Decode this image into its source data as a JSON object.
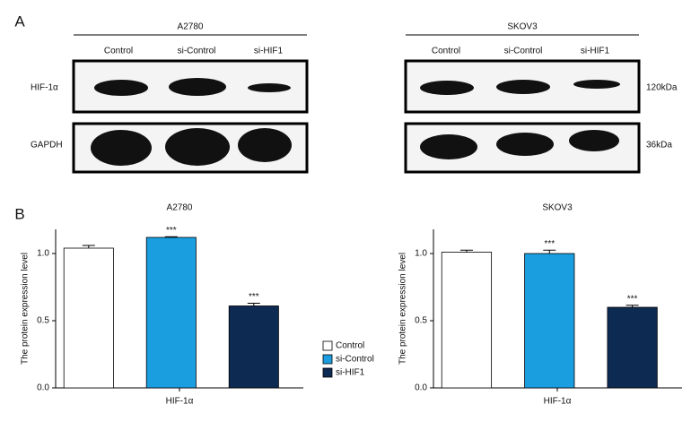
{
  "panel_a": {
    "label": "A",
    "blots": [
      {
        "cell_line": "A2780",
        "lanes": [
          "Control",
          "si-Control",
          "si-HIF1"
        ],
        "rows": [
          "HIF-1α",
          "GAPDH"
        ]
      },
      {
        "cell_line": "SKOV3",
        "lanes": [
          "Control",
          "si-Control",
          "si-HIF1"
        ],
        "sizes": [
          "120kDa",
          "36kDa"
        ]
      }
    ]
  },
  "panel_b": {
    "label": "B"
  },
  "chart_data": [
    {
      "type": "bar",
      "title": "A2780",
      "x_label": "HIF-1α",
      "y_label": "The protein expression level",
      "ylim": [
        0,
        1.18
      ],
      "yticks": [
        {
          "value": 0,
          "label": "0.0"
        },
        {
          "value": 0.5,
          "label": "0.5"
        },
        {
          "value": 1,
          "label": "1.0"
        }
      ],
      "series": [
        {
          "name": "Control",
          "color": "#ffffff",
          "values": [
            1.04
          ],
          "errors": [
            0.02
          ]
        },
        {
          "name": "si-Control",
          "color": "#1a9ee0",
          "values": [
            1.12
          ],
          "errors": [
            0.005
          ],
          "label": "***"
        },
        {
          "name": "si-HIF1",
          "color": "#0d2a52",
          "values": [
            0.61
          ],
          "errors": [
            0.02
          ],
          "label": "***"
        }
      ],
      "legend": "right"
    },
    {
      "type": "bar",
      "title": "SKOV3",
      "x_label": "HIF-1α",
      "y_label": "The protein expression level",
      "ylim": [
        0,
        1.18
      ],
      "yticks": [
        {
          "value": 0,
          "label": "0.0"
        },
        {
          "value": 0.5,
          "label": "0.5"
        },
        {
          "value": 1,
          "label": "1.0"
        }
      ],
      "series": [
        {
          "color": "#ffffff",
          "values": [
            1.01
          ],
          "errors": [
            0.015
          ]
        },
        {
          "color": "#1a9ee0",
          "values": [
            1.0
          ],
          "errors": [
            0.025
          ],
          "label": "***"
        },
        {
          "color": "#0d2a52",
          "values": [
            0.6
          ],
          "errors": [
            0.015
          ],
          "label": "***"
        }
      ]
    }
  ]
}
